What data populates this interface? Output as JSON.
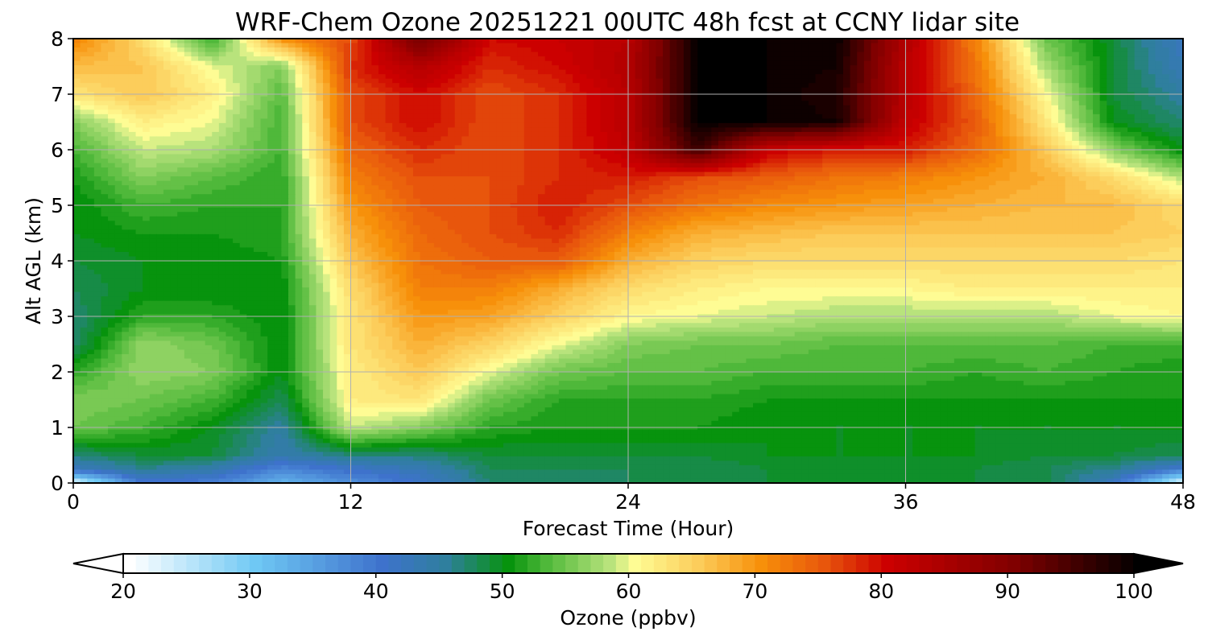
{
  "chart_data": {
    "type": "heatmap",
    "title": "WRF-Chem Ozone  20251221 00UTC 48h fcst at CCNY lidar site",
    "xlabel": "Forecast Time (Hour)",
    "ylabel": "Alt AGL (km)",
    "xlim": [
      0,
      48
    ],
    "ylim": [
      0,
      8
    ],
    "x_ticks": [
      "0",
      "12",
      "24",
      "36",
      "48"
    ],
    "y_ticks": [
      "0",
      "1",
      "2",
      "3",
      "4",
      "5",
      "6",
      "7",
      "8"
    ],
    "grid": true,
    "x_hours": [
      0,
      3,
      6,
      9,
      12,
      15,
      18,
      21,
      24,
      27,
      30,
      33,
      36,
      39,
      42,
      45,
      48
    ],
    "y_km": [
      0,
      0.25,
      0.5,
      1,
      1.5,
      2,
      2.5,
      3,
      3.5,
      4,
      4.5,
      5,
      5.5,
      6,
      6.5,
      7,
      7.5,
      8
    ],
    "z_ozone_ppbv": [
      [
        22,
        40,
        39,
        33,
        37,
        41,
        47,
        47,
        48,
        48,
        49,
        49,
        49,
        49,
        49,
        42,
        22
      ],
      [
        42,
        46,
        44,
        38,
        41,
        43,
        48,
        48,
        48,
        48,
        49,
        49,
        49,
        49,
        48,
        46,
        40
      ],
      [
        47,
        49,
        49,
        44,
        47,
        47,
        49,
        49,
        49,
        49,
        50,
        50,
        50,
        50,
        49,
        49,
        48
      ],
      [
        55,
        53,
        50,
        45,
        59,
        56,
        52,
        51,
        51,
        51,
        50,
        50,
        50,
        50,
        50,
        50,
        50
      ],
      [
        56,
        55,
        53,
        48,
        62,
        63,
        55,
        52,
        52,
        52,
        51,
        51,
        51,
        51,
        51,
        51,
        51
      ],
      [
        52,
        57,
        56,
        50,
        62,
        66,
        60,
        55,
        54,
        54,
        53,
        53,
        53,
        52,
        53,
        52,
        51
      ],
      [
        47,
        57,
        55,
        50,
        63,
        68,
        65,
        60,
        56,
        55,
        55,
        54,
        54,
        54,
        54,
        53,
        53
      ],
      [
        47,
        52,
        52,
        50,
        63,
        70,
        69,
        65,
        61,
        60,
        59,
        58,
        58,
        58,
        58,
        60,
        61
      ],
      [
        48,
        50,
        50,
        50,
        64,
        72,
        72,
        68,
        64,
        62,
        61,
        61,
        61,
        62,
        62,
        62,
        62
      ],
      [
        49,
        50,
        50,
        51,
        66,
        73,
        75,
        75,
        68,
        65,
        64,
        64,
        64,
        64,
        64,
        64,
        63
      ],
      [
        50,
        51,
        51,
        52,
        68,
        74,
        76,
        78,
        72,
        68,
        67,
        66,
        66,
        66,
        66,
        66,
        65
      ],
      [
        50,
        53,
        52,
        52,
        70,
        75,
        76,
        79,
        76,
        73,
        71,
        70,
        69,
        68,
        67,
        67,
        64
      ],
      [
        51,
        56,
        54,
        52,
        72,
        76,
        76,
        78,
        79,
        76,
        75,
        73,
        72,
        70,
        68,
        64,
        58
      ],
      [
        53,
        59,
        58,
        53,
        74,
        78,
        76,
        78,
        82,
        96,
        81,
        79,
        79,
        74,
        66,
        56,
        50
      ],
      [
        56,
        62,
        60,
        53,
        76,
        80,
        76,
        78,
        83,
        100,
        100,
        99,
        82,
        75,
        63,
        50,
        47
      ],
      [
        63,
        66,
        62,
        54,
        76,
        80,
        76,
        78,
        83,
        100,
        100,
        98,
        83,
        74,
        61,
        49,
        45
      ],
      [
        67,
        66,
        60,
        56,
        78,
        84,
        78,
        80,
        84,
        100,
        100,
        99,
        83,
        73,
        58,
        49,
        43
      ],
      [
        72,
        64,
        52,
        71,
        76,
        92,
        80,
        81,
        83,
        100,
        100,
        100,
        84,
        72,
        55,
        49,
        42
      ]
    ],
    "colorbar": {
      "label": "Ozone  (ppbv)",
      "min": 20,
      "max": 100,
      "step": 1,
      "extend": "both",
      "tick_labels": [
        "20",
        "30",
        "40",
        "50",
        "60",
        "70",
        "80",
        "90",
        "100"
      ],
      "color_stops": [
        [
          20,
          "#ffffff"
        ],
        [
          30,
          "#6fc8f4"
        ],
        [
          40,
          "#3e72cc"
        ],
        [
          45,
          "#2f7f9e"
        ],
        [
          50,
          "#07930d"
        ],
        [
          53,
          "#4fb83a"
        ],
        [
          58,
          "#b8e37c"
        ],
        [
          60,
          "#fefc94"
        ],
        [
          65,
          "#fccd5b"
        ],
        [
          70,
          "#f7900a"
        ],
        [
          75,
          "#e8560c"
        ],
        [
          80,
          "#cc0000"
        ],
        [
          90,
          "#800000"
        ],
        [
          100,
          "#000000"
        ]
      ]
    }
  }
}
